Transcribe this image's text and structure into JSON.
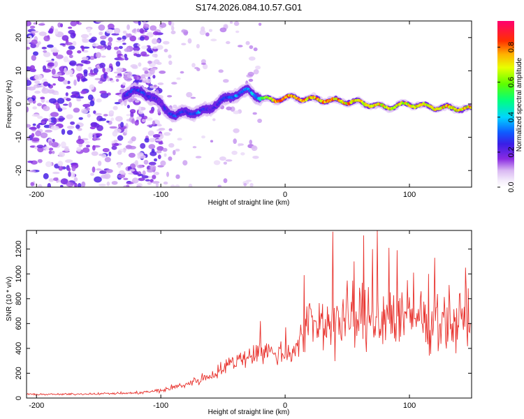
{
  "title": "S174.2026.084.10.57.G01",
  "chart_data": [
    {
      "type": "heatmap",
      "title": "S174.2026.084.10.57.G01",
      "xlabel": "Height of straight line (km)",
      "ylabel": "Frequency (Hz)",
      "xlim": [
        -208,
        150
      ],
      "ylim": [
        -25,
        25
      ],
      "xticks": [
        -200,
        -100,
        0,
        100
      ],
      "yticks": [
        -20,
        -10,
        0,
        10,
        20
      ],
      "xtick_labels": [
        "-200",
        "-100",
        "0",
        "100"
      ],
      "ytick_labels": [
        "-20",
        "-10",
        "0",
        "10",
        "20"
      ],
      "colorbar": {
        "label": "Normalized spectral amplitude",
        "range": [
          0.0,
          0.95
        ],
        "ticks": [
          0.0,
          0.2,
          0.4,
          0.6,
          0.8
        ],
        "tick_labels": [
          "0.0",
          "0.2",
          "0.4",
          "0.6",
          "0.8"
        ]
      },
      "ridge": {
        "x": [
          -130,
          -115,
          -100,
          -88,
          -80,
          -70,
          -60,
          -50,
          -40,
          -30,
          -20,
          -10,
          0,
          20,
          40,
          60,
          80,
          100,
          120,
          150
        ],
        "freq": [
          3,
          4,
          0,
          -4,
          -2,
          -3,
          -1,
          1,
          3,
          4,
          2,
          1,
          2,
          1.5,
          1,
          0.5,
          -1,
          0,
          -1,
          -1.5
        ],
        "peak_amplitude": [
          0.4,
          0.45,
          0.35,
          0.45,
          0.4,
          0.5,
          0.35,
          0.4,
          0.5,
          0.5,
          0.6,
          0.85,
          0.9,
          0.9,
          0.85,
          0.85,
          0.8,
          0.8,
          0.85,
          0.85
        ]
      },
      "noise_region": {
        "x_from": -208,
        "x_to": -130,
        "amplitude": 0.15
      }
    },
    {
      "type": "line",
      "xlabel": "Height of straight line (km)",
      "ylabel": "SNR (10 * v/v)",
      "xlim": [
        -208,
        150
      ],
      "ylim": [
        0,
        1350
      ],
      "xticks": [
        -200,
        -100,
        0,
        100
      ],
      "yticks": [
        0,
        200,
        400,
        600,
        800,
        1000,
        1200
      ],
      "xtick_labels": [
        "-200",
        "-100",
        "0",
        "100"
      ],
      "ytick_labels": [
        "0",
        "200",
        "400",
        "600",
        "800",
        "1000",
        "1200"
      ],
      "color": "#e8312c",
      "series": [
        {
          "name": "SNR",
          "x": [
            -208,
            -180,
            -150,
            -120,
            -100,
            -80,
            -60,
            -40,
            -20,
            0,
            10,
            20,
            40,
            60,
            80,
            100,
            120,
            140,
            150
          ],
          "y": [
            30,
            30,
            35,
            40,
            60,
            110,
            180,
            300,
            380,
            350,
            420,
            600,
            620,
            630,
            660,
            640,
            650,
            600,
            680
          ],
          "spread": [
            10,
            10,
            12,
            15,
            30,
            45,
            75,
            110,
            150,
            150,
            200,
            350,
            400,
            420,
            430,
            420,
            400,
            380,
            380
          ],
          "peaks": [
            [
              -20,
              620
            ],
            [
              0,
              570
            ],
            [
              15,
              990
            ],
            [
              20,
              720
            ],
            [
              38,
              1340
            ],
            [
              55,
              1100
            ],
            [
              63,
              1310
            ],
            [
              70,
              1200
            ],
            [
              74,
              1350
            ],
            [
              83,
              1210
            ],
            [
              90,
              1190
            ],
            [
              103,
              1010
            ],
            [
              120,
              1130
            ],
            [
              145,
              1050
            ]
          ]
        }
      ]
    }
  ]
}
